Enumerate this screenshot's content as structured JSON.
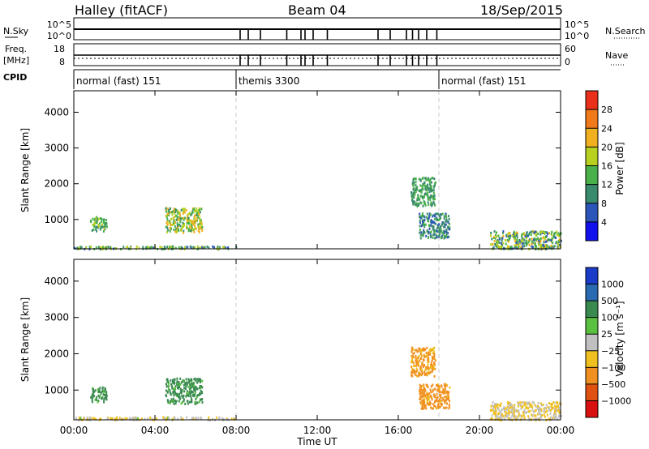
{
  "header": {
    "station": "Halley (fitACF)",
    "beam": "Beam 04",
    "date": "18/Sep/2015"
  },
  "top_panels": {
    "nsky": {
      "label": "N.Sky",
      "tick_top": "10^5",
      "tick_bottom": "10^0"
    },
    "nsearch": {
      "label": "N.Search",
      "tick_top": "10^5",
      "tick_bottom": "10^0"
    },
    "freq": {
      "label_1": "Freq.",
      "label_2": "[MHz]",
      "tick_top": "18",
      "tick_bottom": "8"
    },
    "nave": {
      "label": "Nave",
      "tick_top": "60",
      "tick_bottom": "0"
    },
    "cpid": {
      "label": "CPID",
      "segments": [
        {
          "label": "normal (fast) 151",
          "start_h": 0
        },
        {
          "label": "themis 3300",
          "start_h": 8
        },
        {
          "label": "normal (fast) 151",
          "start_h": 18
        }
      ]
    },
    "gap_times_h": [
      8.2,
      8.6,
      9.2,
      10.5,
      11.2,
      11.4,
      11.8,
      12.5,
      15.0,
      15.6,
      16.4,
      16.7,
      17.0,
      17.4,
      17.9
    ]
  },
  "x_axis": {
    "label": "Time UT",
    "range_h": [
      0,
      24
    ],
    "ticks": [
      "00:00",
      "04:00",
      "08:00",
      "12:00",
      "16:00",
      "20:00",
      "00:00"
    ]
  },
  "chart_data": [
    {
      "type": "heatmap",
      "name": "power",
      "ylabel": "Slant Range [km]",
      "ylim": [
        180,
        4600
      ],
      "yticks": [
        1000,
        2000,
        3000,
        4000
      ],
      "colorbar": {
        "label": "Power [dB]",
        "ticks": [
          "4",
          "8",
          "12",
          "16",
          "20",
          "24",
          "28"
        ],
        "colors": [
          "#1111ee",
          "#2b55b8",
          "#3a8a6e",
          "#49b04a",
          "#b8d020",
          "#f0b020",
          "#f07a1a",
          "#e8301a"
        ]
      },
      "clusters": [
        {
          "t": [
            0.8,
            1.6
          ],
          "r": [
            700,
            1100
          ],
          "values": [
            8,
            18
          ]
        },
        {
          "t": [
            4.5,
            6.3
          ],
          "r": [
            650,
            1350
          ],
          "values": [
            10,
            24
          ]
        },
        {
          "t": [
            16.6,
            17.8
          ],
          "r": [
            1400,
            2200
          ],
          "values": [
            8,
            16
          ]
        },
        {
          "t": [
            17.0,
            18.5
          ],
          "r": [
            500,
            1200
          ],
          "values": [
            6,
            14
          ]
        },
        {
          "t": [
            20.5,
            24.0
          ],
          "r": [
            200,
            700
          ],
          "values": [
            6,
            22
          ]
        },
        {
          "t": [
            0.0,
            8.0
          ],
          "r": [
            200,
            280
          ],
          "values": [
            6,
            20
          ]
        }
      ]
    },
    {
      "type": "heatmap",
      "name": "velocity",
      "ylabel": "Slant Range [km]",
      "ylim": [
        180,
        4600
      ],
      "yticks": [
        1000,
        2000,
        3000,
        4000
      ],
      "colorbar": {
        "label": "Velocity [m s⁻¹]",
        "ticks": [
          "1000",
          "500",
          "100",
          "25",
          "−25",
          "−100",
          "−500",
          "−1000"
        ],
        "colors": [
          "#1a3cc8",
          "#2a6ab0",
          "#3a8a50",
          "#5ac040",
          "#c0c0c0",
          "#f0c020",
          "#f09020",
          "#e05010",
          "#d81010"
        ]
      },
      "clusters": [
        {
          "t": [
            0.8,
            1.6
          ],
          "r": [
            700,
            1100
          ],
          "values": [
            50,
            300
          ]
        },
        {
          "t": [
            4.5,
            6.3
          ],
          "r": [
            650,
            1350
          ],
          "values": [
            50,
            400
          ]
        },
        {
          "t": [
            16.6,
            17.8
          ],
          "r": [
            1400,
            2200
          ],
          "values": [
            -200,
            -60
          ]
        },
        {
          "t": [
            17.0,
            18.5
          ],
          "r": [
            500,
            1200
          ],
          "values": [
            -300,
            -80
          ]
        },
        {
          "t": [
            20.5,
            24.0
          ],
          "r": [
            200,
            700
          ],
          "values": [
            -80,
            20
          ]
        },
        {
          "t": [
            0.0,
            8.0
          ],
          "r": [
            200,
            280
          ],
          "values": [
            -60,
            30
          ]
        }
      ]
    }
  ]
}
